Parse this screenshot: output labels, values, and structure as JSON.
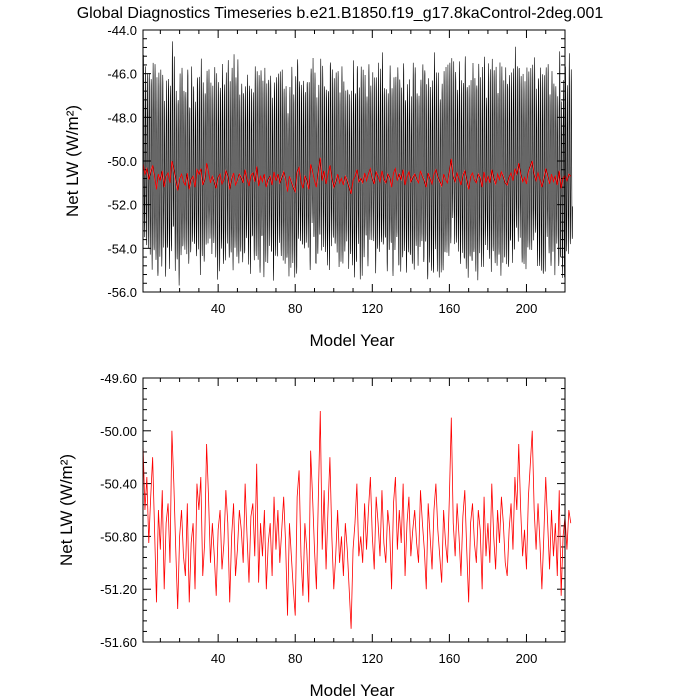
{
  "title": "Global Diagnostics Timeseries b.e21.B1850.f19_g17.8kaControl-2deg.001",
  "colors": {
    "monthly": "#000000",
    "annual": "#ff0000"
  },
  "chart_data": [
    {
      "type": "line",
      "xlabel": "Model Year",
      "ylabel": "Net LW (W/m²)",
      "xlim": [
        1,
        220
      ],
      "ylim": [
        -56.0,
        -44.0
      ],
      "xticks": [
        40,
        80,
        120,
        160,
        200
      ],
      "xtick_labels": [
        "40",
        "80",
        "120",
        "160",
        "200"
      ],
      "yticks": [
        -56.0,
        -54.0,
        -52.0,
        -50.0,
        -48.0,
        -46.0,
        -44.0
      ],
      "ytick_labels": [
        "-56.0",
        "-54.0",
        "-52.0",
        "-50.0",
        "-48.0",
        "-46.0",
        "-44.0"
      ],
      "grid": false,
      "series": [
        {
          "role": "monthly",
          "color": "#000000",
          "values_desc": "monthly global mean, seasonal cycle roughly -54 to -46 each year"
        },
        {
          "role": "annual",
          "color": "#ff0000",
          "values_ref": "annual"
        }
      ]
    },
    {
      "type": "line",
      "xlabel": "Model Year",
      "ylabel": "Net LW (W/m²)",
      "xlim": [
        1,
        220
      ],
      "ylim": [
        -51.6,
        -49.6
      ],
      "xticks": [
        40,
        80,
        120,
        160,
        200
      ],
      "xtick_labels": [
        "40",
        "80",
        "120",
        "160",
        "200"
      ],
      "yticks": [
        -51.6,
        -51.2,
        -50.8,
        -50.4,
        -50.0,
        -49.6
      ],
      "ytick_labels": [
        "-51.60",
        "-51.20",
        "-50.80",
        "-50.40",
        "-50.00",
        "-49.60"
      ],
      "grid": false,
      "series": [
        {
          "role": "annual",
          "color": "#ff0000",
          "values_ref": "annual"
        }
      ]
    }
  ],
  "annual": {
    "x_start": 1,
    "values": [
      -50.1,
      -50.6,
      -50.35,
      -50.85,
      -50.5,
      -50.2,
      -50.75,
      -51.3,
      -50.6,
      -50.9,
      -50.45,
      -51.2,
      -50.7,
      -50.55,
      -51.0,
      -50.0,
      -50.4,
      -50.9,
      -51.35,
      -50.8,
      -50.6,
      -50.95,
      -51.1,
      -50.55,
      -51.3,
      -50.85,
      -50.7,
      -51.2,
      -50.4,
      -50.6,
      -50.35,
      -51.1,
      -50.85,
      -50.1,
      -50.5,
      -51.0,
      -50.7,
      -50.95,
      -51.25,
      -50.75,
      -50.6,
      -51.05,
      -50.85,
      -50.45,
      -50.7,
      -51.3,
      -50.8,
      -50.55,
      -51.1,
      -50.9,
      -50.6,
      -50.75,
      -51.0,
      -50.4,
      -50.8,
      -51.15,
      -50.65,
      -50.55,
      -50.95,
      -50.25,
      -51.15,
      -50.7,
      -50.95,
      -50.6,
      -51.2,
      -50.85,
      -50.7,
      -51.1,
      -50.5,
      -50.9,
      -50.6,
      -51.0,
      -50.75,
      -50.5,
      -50.85,
      -51.4,
      -50.7,
      -50.95,
      -51.2,
      -51.4,
      -50.5,
      -50.3,
      -50.95,
      -51.25,
      -50.7,
      -50.9,
      -51.3,
      -50.15,
      -50.5,
      -50.9,
      -51.2,
      -50.5,
      -49.85,
      -50.9,
      -50.45,
      -51.05,
      -50.6,
      -50.2,
      -50.8,
      -51.2,
      -50.95,
      -50.6,
      -51.0,
      -50.8,
      -51.1,
      -50.7,
      -50.9,
      -51.2,
      -51.5,
      -50.9,
      -50.7,
      -50.4,
      -50.95,
      -50.8,
      -51.0,
      -50.55,
      -50.9,
      -50.6,
      -50.35,
      -50.8,
      -51.05,
      -50.5,
      -50.7,
      -50.95,
      -50.45,
      -50.85,
      -51.0,
      -50.6,
      -50.75,
      -51.2,
      -50.55,
      -50.35,
      -50.9,
      -50.6,
      -50.85,
      -50.4,
      -51.1,
      -50.7,
      -50.5,
      -50.95,
      -50.75,
      -50.6,
      -50.85,
      -51.0,
      -50.45,
      -50.7,
      -50.9,
      -51.2,
      -50.55,
      -50.8,
      -51.05,
      -50.6,
      -50.4,
      -50.75,
      -50.95,
      -51.15,
      -50.6,
      -50.85,
      -51.0,
      -50.5,
      -49.9,
      -50.7,
      -50.95,
      -50.55,
      -50.8,
      -51.1,
      -50.65,
      -50.45,
      -50.9,
      -51.3,
      -50.7,
      -50.55,
      -50.85,
      -51.0,
      -50.6,
      -50.75,
      -51.2,
      -50.5,
      -50.95,
      -50.7,
      -51.0,
      -50.4,
      -50.8,
      -51.05,
      -50.6,
      -50.85,
      -50.5,
      -50.7,
      -51.0,
      -51.1,
      -50.75,
      -50.55,
      -50.9,
      -50.35,
      -50.6,
      -50.1,
      -50.6,
      -50.95,
      -50.75,
      -51.05,
      -50.5,
      -50.25,
      -50.0,
      -50.6,
      -50.9,
      -50.55,
      -50.85,
      -51.2,
      -50.8,
      -50.35,
      -50.7,
      -51.05,
      -50.6,
      -50.95,
      -50.7,
      -51.1,
      -50.45,
      -51.25,
      -50.8,
      -50.65,
      -50.9,
      -50.6,
      -50.7
    ]
  }
}
